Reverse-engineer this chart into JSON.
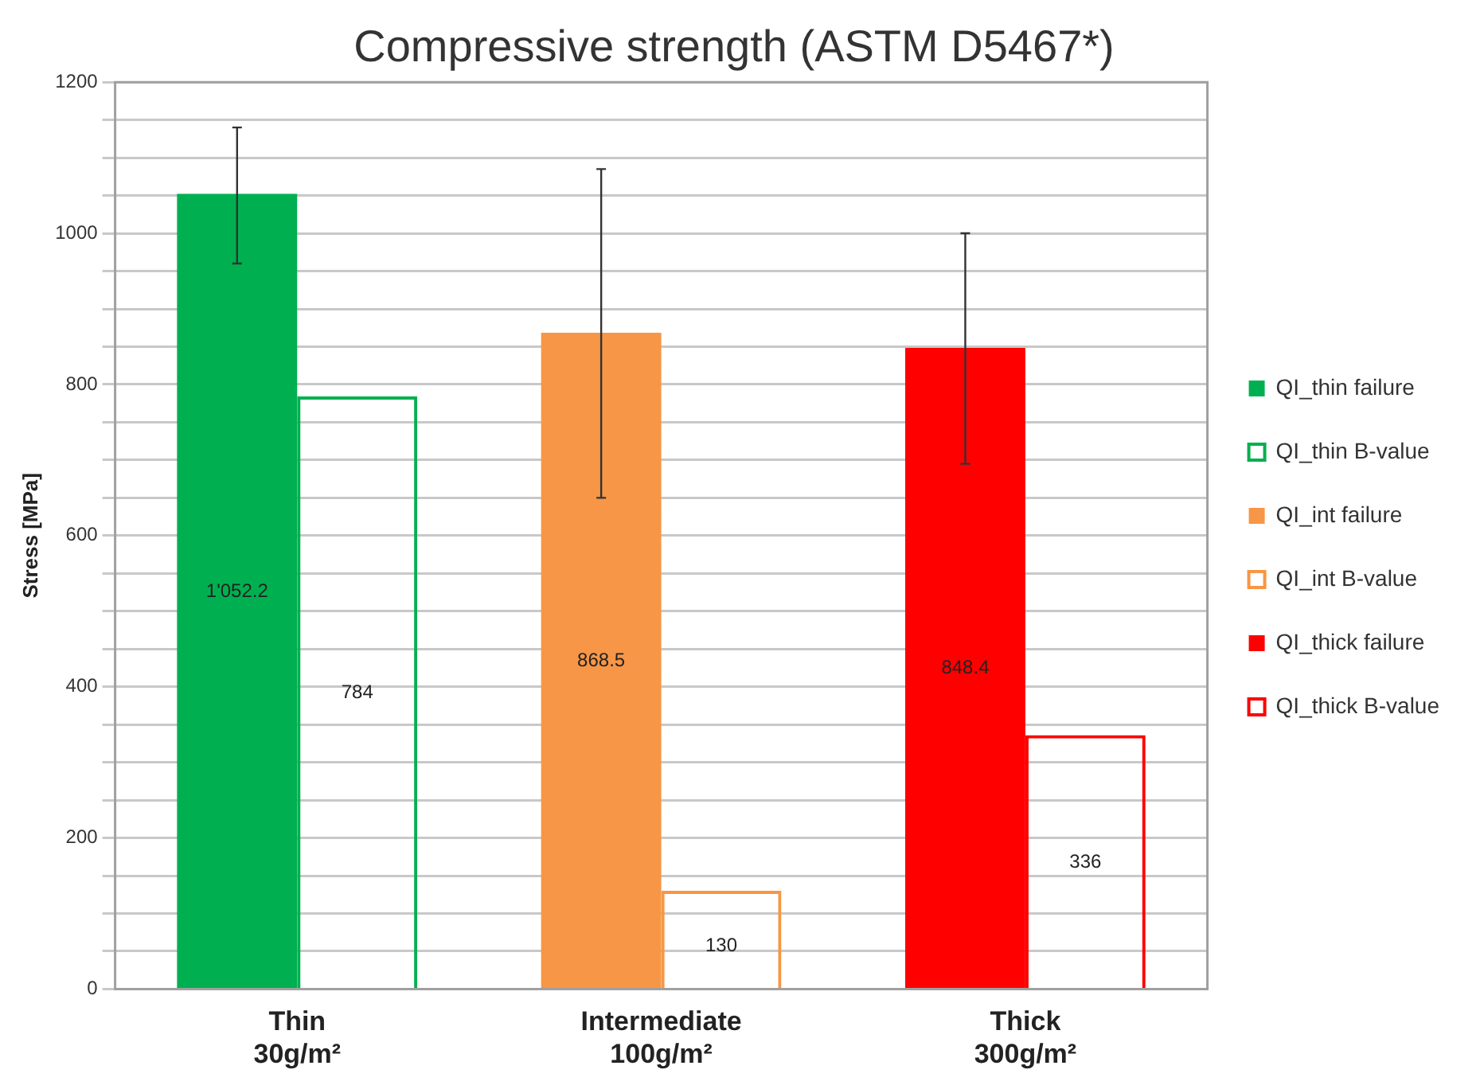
{
  "chart_data": {
    "type": "bar",
    "title": "Compressive strength (ASTM D5467*)",
    "ylabel": "Stress [MPa]",
    "categories": [
      "Thin\n30g/m²",
      "Intermediate\n100g/m²",
      "Thick\n300g/m²"
    ],
    "series": [
      {
        "name": "QI_thin failure",
        "color": "#00b050",
        "values": [
          1052.2,
          null,
          null
        ],
        "errors": [
          [
            960,
            1140
          ],
          null,
          null
        ],
        "value_labels": [
          "1'052.2",
          null,
          null
        ]
      },
      {
        "name": "QI_thin B-value",
        "color": "#00b050",
        "values": [
          784,
          null,
          null
        ],
        "value_labels": [
          "784",
          null,
          null
        ]
      },
      {
        "name": "QI_int failure",
        "color": "#f79646",
        "values": [
          null,
          868.5,
          null
        ],
        "errors": [
          null,
          [
            650,
            1085
          ],
          null
        ],
        "value_labels": [
          null,
          "868.5",
          null
        ]
      },
      {
        "name": "QI_int B-value",
        "color": "#f79646",
        "values": [
          null,
          130,
          null
        ],
        "value_labels": [
          null,
          "130",
          null
        ]
      },
      {
        "name": "QI_thick failure",
        "color": "#ff0000",
        "values": [
          null,
          null,
          848.4
        ],
        "errors": [
          null,
          null,
          [
            695,
            1000
          ]
        ],
        "value_labels": [
          null,
          null,
          "848.4"
        ]
      },
      {
        "name": "QI_thick B-value",
        "color": "#ff0000",
        "values": [
          null,
          null,
          336
        ],
        "value_labels": [
          null,
          null,
          "336"
        ]
      }
    ],
    "ylim": [
      0,
      1200
    ],
    "yticks": [
      0,
      {
        "value": 50,
        "label": null
      },
      {
        "value": 100,
        "label": null
      },
      {
        "value": 150,
        "label": null
      },
      200,
      {
        "value": 250,
        "label": null
      },
      {
        "value": 300,
        "label": null
      },
      {
        "value": 350,
        "label": null
      },
      400,
      {
        "value": 450,
        "label": null
      },
      {
        "value": 500,
        "label": null
      },
      {
        "value": 550,
        "label": null
      },
      600,
      {
        "value": 650,
        "label": null
      },
      {
        "value": 700,
        "label": null
      },
      {
        "value": 750,
        "label": null
      },
      800,
      {
        "value": 850,
        "label": null
      },
      {
        "value": 900,
        "label": null
      },
      {
        "value": 950,
        "label": null
      },
      1000,
      {
        "value": 1050,
        "label": null
      },
      {
        "value": 1100,
        "label": null
      },
      {
        "value": 1150,
        "label": null
      },
      1200
    ],
    "grid": "y",
    "legend": "right"
  }
}
